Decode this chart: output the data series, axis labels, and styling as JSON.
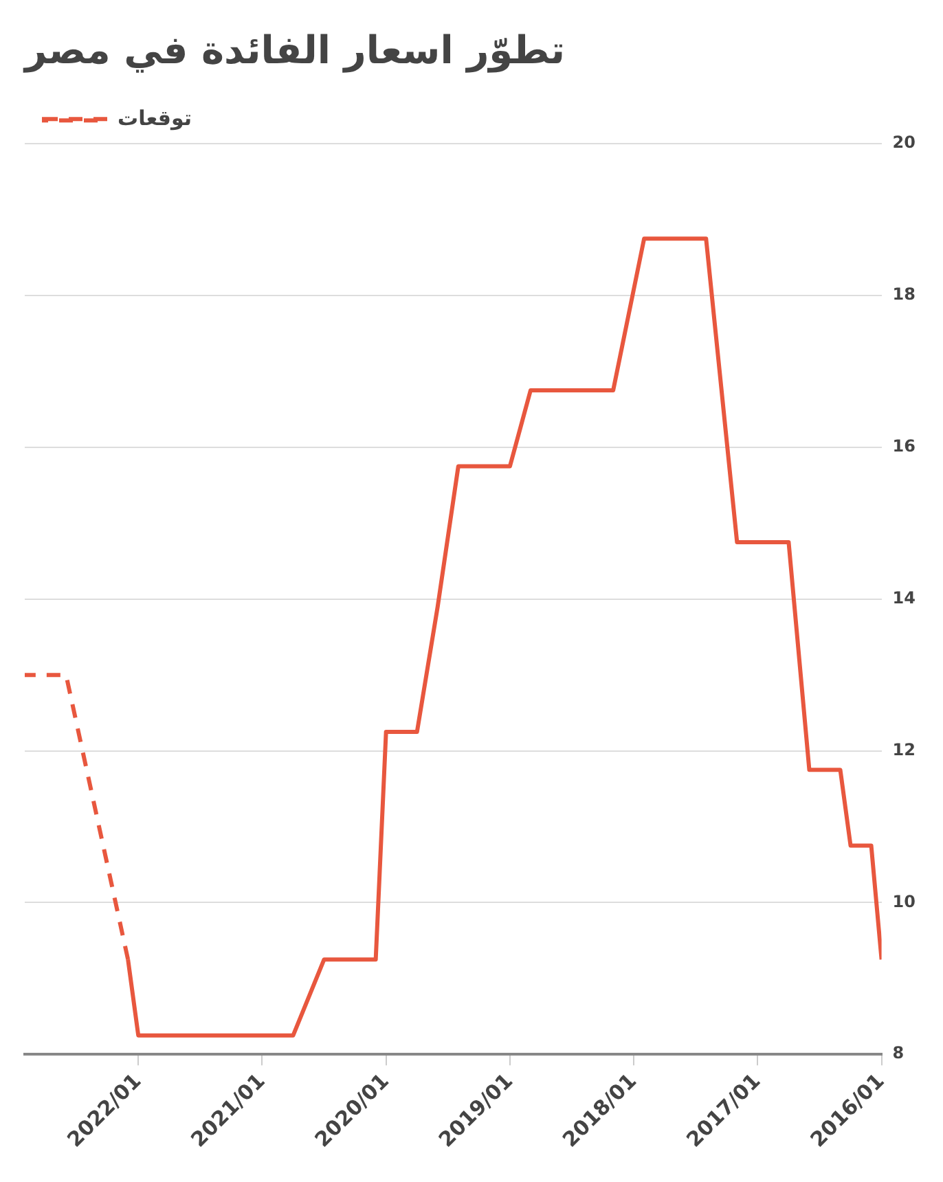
{
  "chart_data": {
    "type": "line",
    "title": "تطوّر اسعار الفائدة في مصر",
    "series": [
      {
        "color": "#e8573e",
        "line_style": "solid",
        "x": [
          "2016-01",
          "2016-02",
          "2016-04",
          "2016-05",
          "2016-08",
          "2016-10",
          "2017-03",
          "2017-06",
          "2017-12",
          "2018-03",
          "2018-11",
          "2019-01",
          "2019-06",
          "2019-08",
          "2019-10",
          "2020-01",
          "2020-02",
          "2020-07",
          "2020-10",
          "2022-01",
          "2022-02"
        ],
        "values": [
          9.25,
          10.75,
          10.75,
          11.75,
          11.75,
          14.75,
          14.75,
          18.75,
          18.75,
          16.75,
          16.75,
          15.75,
          15.75,
          13.9,
          12.25,
          12.25,
          9.25,
          9.25,
          8.25,
          8.25,
          9.25
        ]
      },
      {
        "name": "توقعات",
        "color": "#e8573e",
        "line_style": "dashed",
        "x": [
          "2022-02",
          "2022-08",
          "2022-12"
        ],
        "values": [
          9.25,
          13,
          13
        ]
      }
    ],
    "xlim": [
      "2022-12",
      "2016-01"
    ],
    "xticks": [
      {
        "value": "2022-01",
        "label": "2022/01"
      },
      {
        "value": "2021-01",
        "label": "2021/01"
      },
      {
        "value": "2020-01",
        "label": "2020/01"
      },
      {
        "value": "2019-01",
        "label": "2019/01"
      },
      {
        "value": "2018-01",
        "label": "2018/01"
      },
      {
        "value": "2017-01",
        "label": "2017/01"
      },
      {
        "value": "2016-01",
        "label": "2016/01"
      }
    ],
    "ylim": [
      8,
      20
    ],
    "yticks": [
      8,
      10,
      12,
      14,
      16,
      18,
      20
    ],
    "grid": "y",
    "legend": "top left",
    "marker": "none"
  }
}
